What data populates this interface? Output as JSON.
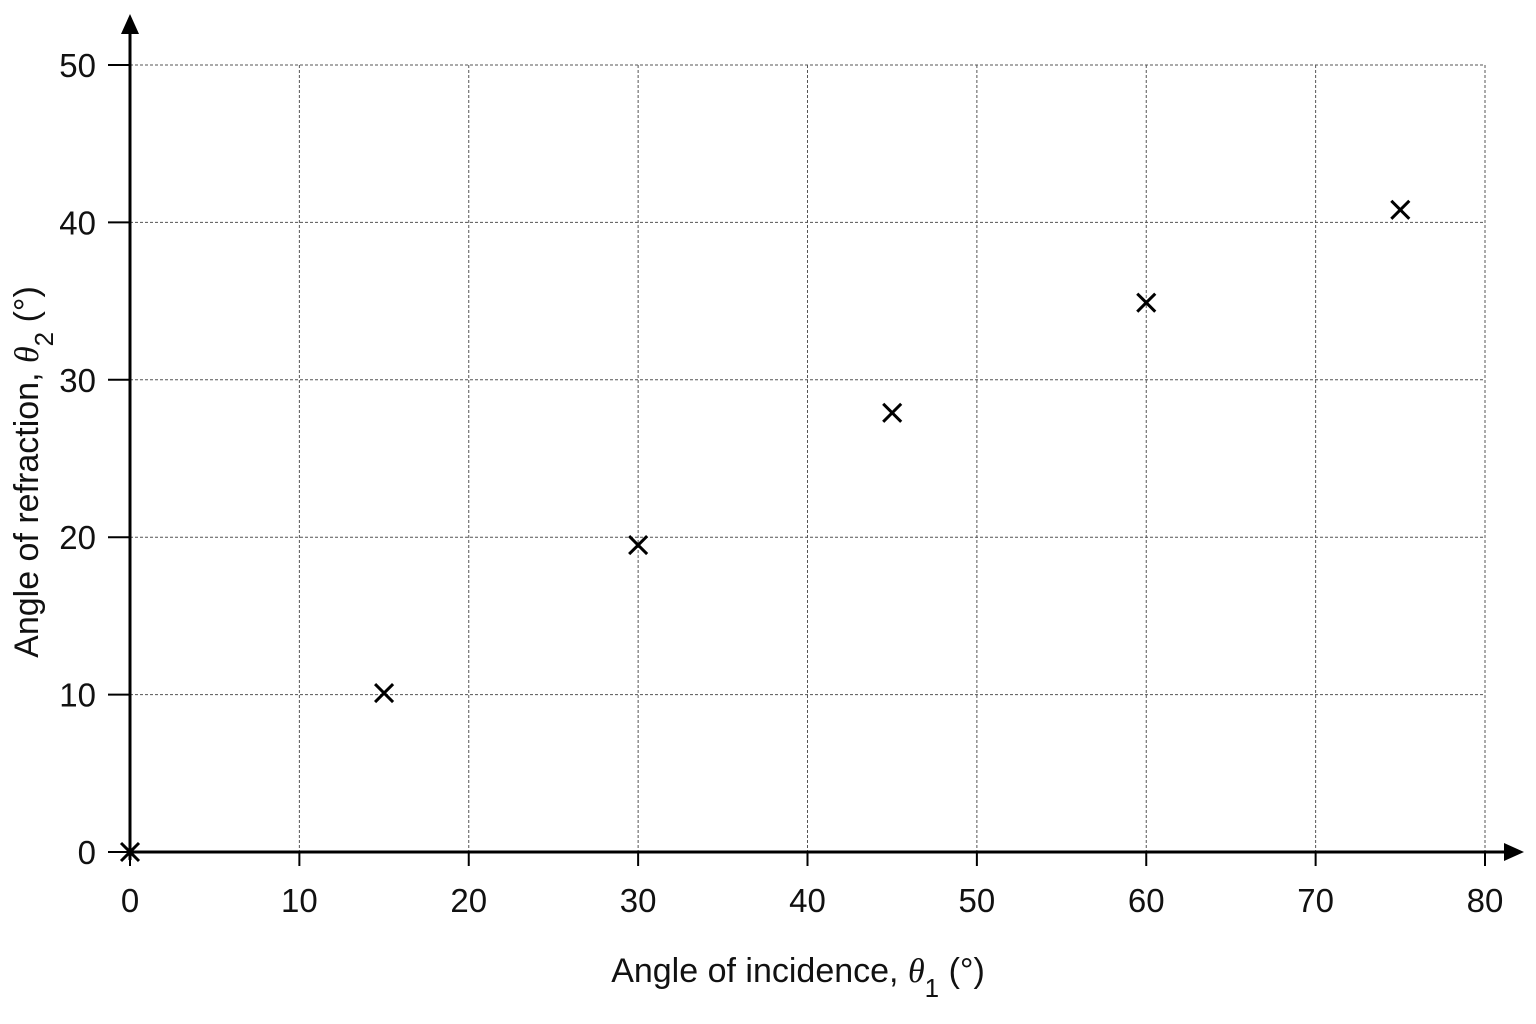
{
  "chart_data": {
    "type": "scatter",
    "title": "",
    "xlabel": {
      "prefix": "Angle of incidence, ",
      "symbol": "θ",
      "subscript": "1",
      "suffix": " (°)"
    },
    "ylabel": {
      "prefix": "Angle of refraction, ",
      "symbol": "θ",
      "subscript": "2",
      "suffix": " (°)"
    },
    "xlim": [
      0,
      80
    ],
    "ylim": [
      0,
      50
    ],
    "xticks": [
      0,
      10,
      20,
      30,
      40,
      50,
      60,
      70,
      80
    ],
    "yticks": [
      0,
      10,
      20,
      30,
      40,
      50
    ],
    "grid": true,
    "marker": "x",
    "series": [
      {
        "points": [
          {
            "x": 0,
            "y": 0
          },
          {
            "x": 15,
            "y": 10.1
          },
          {
            "x": 30,
            "y": 19.5
          },
          {
            "x": 45,
            "y": 27.9
          },
          {
            "x": 60,
            "y": 34.9
          },
          {
            "x": 75,
            "y": 40.8
          }
        ]
      }
    ]
  }
}
